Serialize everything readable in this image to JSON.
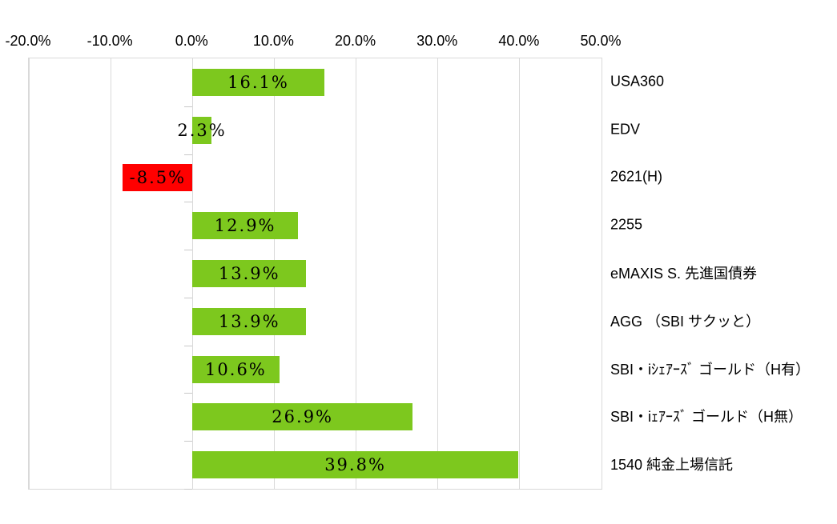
{
  "chart_data": {
    "type": "bar",
    "orientation": "horizontal",
    "title": "",
    "categories": [
      "USA360",
      "EDV",
      "2621(H)",
      "2255",
      "eMAXIS S. 先進国債券",
      "AGG （SBI サクッと）",
      "SBI・iｼｪｱｰｽﾞ ゴールド（H有）",
      "SBI・iｪｱｰｽﾞ ゴールド（H無）",
      "1540 純金上場信託"
    ],
    "values": [
      16.1,
      2.3,
      -8.5,
      12.9,
      13.9,
      13.9,
      10.6,
      26.9,
      39.8
    ],
    "value_labels": [
      "16.1%",
      "2.3%",
      "-8.5%",
      "12.9%",
      "13.9%",
      "13.9%",
      "10.6%",
      "26.9%",
      "39.8%"
    ],
    "xlim": [
      -20,
      50
    ],
    "x_tick_values": [
      -20,
      -10,
      0,
      10,
      20,
      30,
      40,
      50
    ],
    "x_tick_labels": [
      "-20.0%",
      "-10.0%",
      "0.0%",
      "10.0%",
      "20.0%",
      "30.0%",
      "40.0%",
      "50.0%"
    ],
    "grid": true,
    "legend": false,
    "xlabel": "",
    "ylabel": "",
    "colors": {
      "positive_bar": "#7DC81E",
      "negative_bar": "#FF0000",
      "gridline": "#D9D9D9",
      "axis_tick": "#C9C9C9",
      "text": "#000000",
      "background": "#FFFFFF"
    }
  }
}
